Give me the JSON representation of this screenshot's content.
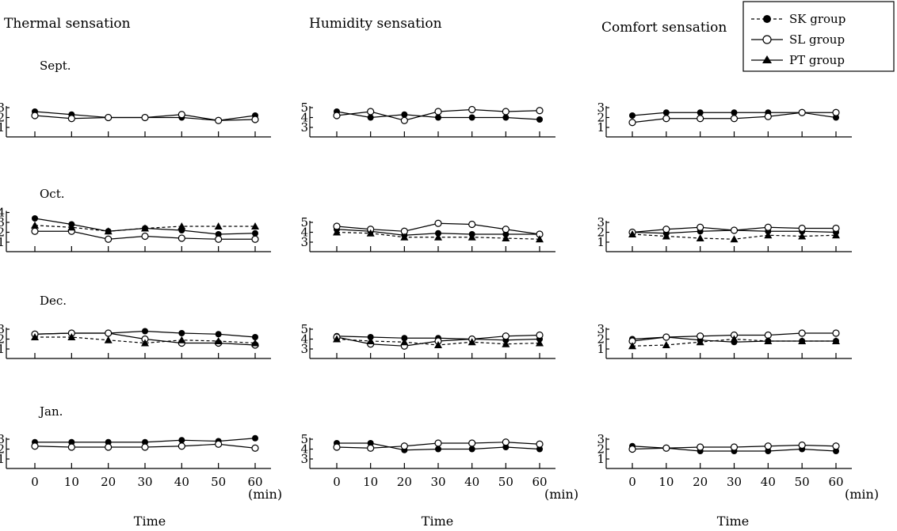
{
  "legend": [
    {
      "name": "SK group",
      "marker": "filled-circle",
      "line": "dashed"
    },
    {
      "name": "SL group",
      "marker": "open-circle",
      "line": "solid"
    },
    {
      "name": "PT group",
      "marker": "filled-triangle",
      "line": "solid"
    }
  ],
  "chart_data": {
    "type": "line",
    "columns": [
      "Thermal sensation",
      "Humidity sensation",
      "Comfort sensation"
    ],
    "rows": [
      "Sept.",
      "Oct.",
      "Dec.",
      "Jan."
    ],
    "x": [
      0,
      10,
      20,
      30,
      40,
      50,
      60
    ],
    "x_tick_labels": [
      "0",
      "10",
      "20",
      "30",
      "40",
      "50",
      "60"
    ],
    "xlabel": "Time",
    "x_unit": "(min)",
    "panels": [
      {
        "column": "Thermal sensation",
        "row": "Sept.",
        "yticks": [
          "1",
          "2",
          "3"
        ],
        "ylim": [
          1,
          3
        ],
        "series": [
          {
            "marker": "filled-circle",
            "line": "solid",
            "values": [
              2.6,
              2.3,
              2.0,
              2.0,
              2.0,
              1.7,
              2.2
            ]
          },
          {
            "marker": "open-circle",
            "line": "solid",
            "values": [
              2.2,
              1.9,
              2.0,
              2.0,
              2.3,
              1.7,
              1.8
            ]
          }
        ]
      },
      {
        "column": "Humidity sensation",
        "row": "Sept.",
        "yticks": [
          "3",
          "4",
          "5"
        ],
        "ylim": [
          3,
          5
        ],
        "series": [
          {
            "marker": "filled-circle",
            "line": "solid",
            "values": [
              4.6,
              4.0,
              4.3,
              4.0,
              4.0,
              4.0,
              3.8
            ]
          },
          {
            "marker": "open-circle",
            "line": "solid",
            "values": [
              4.2,
              4.6,
              3.7,
              4.6,
              4.8,
              4.6,
              4.7
            ]
          }
        ]
      },
      {
        "column": "Comfort sensation",
        "row": "Sept.",
        "yticks": [
          "1",
          "2",
          "3"
        ],
        "ylim": [
          1,
          3
        ],
        "series": [
          {
            "marker": "filled-circle",
            "line": "solid",
            "values": [
              2.2,
              2.5,
              2.5,
              2.5,
              2.5,
              2.5,
              2.0
            ]
          },
          {
            "marker": "open-circle",
            "line": "solid",
            "values": [
              1.5,
              1.9,
              1.9,
              1.9,
              2.1,
              2.5,
              2.5
            ]
          }
        ]
      },
      {
        "column": "Thermal sensation",
        "row": "Oct.",
        "yticks": [
          "1",
          "2",
          "3",
          "4"
        ],
        "ylim": [
          1,
          4
        ],
        "series": [
          {
            "marker": "filled-circle",
            "line": "solid",
            "values": [
              3.4,
              2.8,
              2.1,
              2.4,
              2.2,
              1.8,
              1.9
            ]
          },
          {
            "marker": "open-circle",
            "line": "solid",
            "values": [
              2.1,
              2.1,
              1.3,
              1.6,
              1.4,
              1.3,
              1.3
            ]
          },
          {
            "marker": "filled-triangle",
            "line": "dashed",
            "values": [
              2.7,
              2.5,
              2.1,
              2.4,
              2.6,
              2.6,
              2.6
            ]
          }
        ]
      },
      {
        "column": "Humidity sensation",
        "row": "Oct.",
        "yticks": [
          "3",
          "4",
          "5"
        ],
        "ylim": [
          3,
          5
        ],
        "series": [
          {
            "marker": "filled-circle",
            "line": "solid",
            "values": [
              4.3,
              4.1,
              3.7,
              3.9,
              3.8,
              3.8,
              3.8
            ]
          },
          {
            "marker": "open-circle",
            "line": "solid",
            "values": [
              4.6,
              4.3,
              4.1,
              4.9,
              4.8,
              4.3,
              3.8
            ]
          },
          {
            "marker": "filled-triangle",
            "line": "dashed",
            "values": [
              4.0,
              3.9,
              3.5,
              3.5,
              3.5,
              3.4,
              3.3
            ]
          }
        ]
      },
      {
        "column": "Comfort sensation",
        "row": "Oct.",
        "yticks": [
          "1",
          "2",
          "3"
        ],
        "ylim": [
          1,
          3
        ],
        "series": [
          {
            "marker": "filled-circle",
            "line": "solid",
            "values": [
              2.0,
              1.9,
              2.1,
              2.2,
              2.1,
              2.1,
              2.0
            ]
          },
          {
            "marker": "open-circle",
            "line": "solid",
            "values": [
              2.0,
              2.3,
              2.5,
              2.2,
              2.5,
              2.4,
              2.4
            ]
          },
          {
            "marker": "filled-triangle",
            "line": "dashed",
            "values": [
              1.8,
              1.6,
              1.4,
              1.3,
              1.7,
              1.6,
              1.7
            ]
          }
        ]
      },
      {
        "column": "Thermal sensation",
        "row": "Dec.",
        "yticks": [
          "1",
          "2",
          "3"
        ],
        "ylim": [
          1,
          3
        ],
        "series": [
          {
            "marker": "filled-circle",
            "line": "solid",
            "values": [
              2.5,
              2.6,
              2.6,
              2.8,
              2.6,
              2.5,
              2.2
            ]
          },
          {
            "marker": "open-circle",
            "line": "solid",
            "values": [
              2.5,
              2.6,
              2.6,
              2.0,
              1.6,
              1.6,
              1.4
            ]
          },
          {
            "marker": "filled-triangle",
            "line": "dashed",
            "values": [
              2.2,
              2.2,
              1.9,
              1.6,
              1.9,
              1.8,
              1.6
            ]
          }
        ]
      },
      {
        "column": "Humidity sensation",
        "row": "Dec.",
        "yticks": [
          "3",
          "4",
          "5"
        ],
        "ylim": [
          3,
          5
        ],
        "series": [
          {
            "marker": "filled-circle",
            "line": "solid",
            "values": [
              4.3,
              4.2,
              4.1,
              4.1,
              4.0,
              3.9,
              4.0
            ]
          },
          {
            "marker": "open-circle",
            "line": "solid",
            "values": [
              4.2,
              3.5,
              3.3,
              3.8,
              4.0,
              4.3,
              4.4
            ]
          },
          {
            "marker": "filled-triangle",
            "line": "dashed",
            "values": [
              4.0,
              3.8,
              3.7,
              3.4,
              3.7,
              3.5,
              3.6
            ]
          }
        ]
      },
      {
        "column": "Comfort sensation",
        "row": "Dec.",
        "yticks": [
          "1",
          "2",
          "3"
        ],
        "ylim": [
          1,
          3
        ],
        "series": [
          {
            "marker": "filled-circle",
            "line": "solid",
            "values": [
              2.0,
              2.2,
              1.9,
              1.7,
              1.8,
              1.8,
              1.8
            ]
          },
          {
            "marker": "open-circle",
            "line": "solid",
            "values": [
              1.8,
              2.2,
              2.3,
              2.4,
              2.4,
              2.6,
              2.6
            ]
          },
          {
            "marker": "filled-triangle",
            "line": "dashed",
            "values": [
              1.3,
              1.4,
              1.7,
              2.0,
              1.8,
              1.8,
              1.8
            ]
          }
        ]
      },
      {
        "column": "Thermal sensation",
        "row": "Jan.",
        "yticks": [
          "1",
          "2",
          "3"
        ],
        "ylim": [
          1,
          3
        ],
        "series": [
          {
            "marker": "filled-circle",
            "line": "solid",
            "values": [
              2.7,
              2.7,
              2.7,
              2.7,
              2.9,
              2.8,
              3.1
            ]
          },
          {
            "marker": "open-circle",
            "line": "solid",
            "values": [
              2.3,
              2.2,
              2.2,
              2.2,
              2.3,
              2.5,
              2.1
            ]
          }
        ]
      },
      {
        "column": "Humidity sensation",
        "row": "Jan.",
        "yticks": [
          "3",
          "4",
          "5"
        ],
        "ylim": [
          3,
          5
        ],
        "series": [
          {
            "marker": "filled-circle",
            "line": "solid",
            "values": [
              4.6,
              4.6,
              3.9,
              4.0,
              4.0,
              4.2,
              4.0
            ]
          },
          {
            "marker": "open-circle",
            "line": "solid",
            "values": [
              4.2,
              4.1,
              4.3,
              4.6,
              4.6,
              4.7,
              4.5
            ]
          }
        ]
      },
      {
        "column": "Comfort sensation",
        "row": "Jan.",
        "yticks": [
          "1",
          "2",
          "3"
        ],
        "ylim": [
          1,
          3
        ],
        "series": [
          {
            "marker": "filled-circle",
            "line": "solid",
            "values": [
              2.3,
              2.1,
              1.8,
              1.8,
              1.8,
              2.0,
              1.8
            ]
          },
          {
            "marker": "open-circle",
            "line": "solid",
            "values": [
              2.0,
              2.1,
              2.2,
              2.2,
              2.3,
              2.4,
              2.3
            ]
          }
        ]
      }
    ]
  }
}
